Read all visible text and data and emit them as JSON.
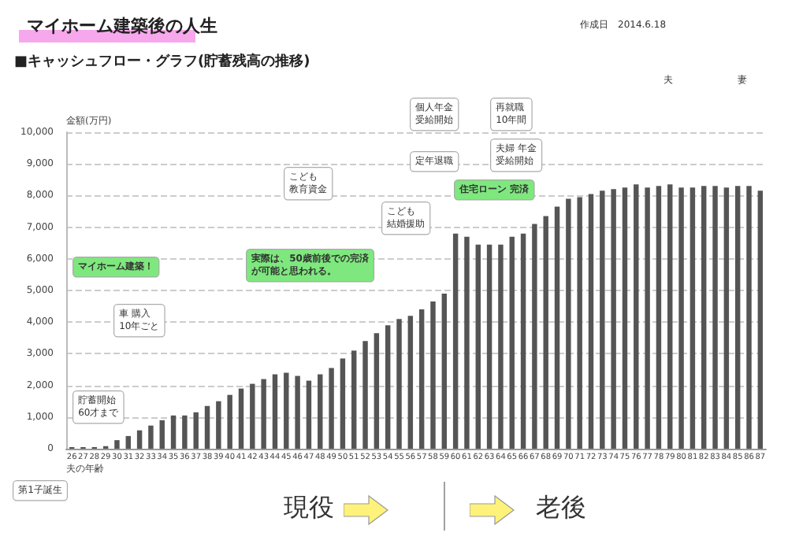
{
  "chart_data": {
    "type": "bar",
    "title": "マイホーム建築後の人生",
    "subtitle": "■キャッシュフロー・グラフ(貯蓄残高の推移)",
    "xlabel": "夫の年齢",
    "ylabel": "金額(万円)",
    "categories": [
      "26",
      "27",
      "28",
      "29",
      "30",
      "31",
      "32",
      "33",
      "34",
      "35",
      "36",
      "37",
      "38",
      "39",
      "40",
      "41",
      "42",
      "43",
      "44",
      "45",
      "46",
      "47",
      "48",
      "49",
      "50",
      "51",
      "52",
      "53",
      "54",
      "55",
      "56",
      "57",
      "58",
      "59",
      "60",
      "61",
      "62",
      "63",
      "64",
      "65",
      "66",
      "67",
      "68",
      "69",
      "70",
      "71",
      "72",
      "73",
      "74",
      "75",
      "76",
      "77",
      "78",
      "79",
      "80",
      "81",
      "82",
      "83",
      "84",
      "85",
      "86",
      "87"
    ],
    "values": [
      50,
      50,
      50,
      80,
      270,
      400,
      580,
      730,
      900,
      1050,
      1050,
      1150,
      1350,
      1500,
      1700,
      1900,
      2050,
      2200,
      2350,
      2400,
      2300,
      2150,
      2350,
      2550,
      2850,
      3100,
      3400,
      3650,
      3900,
      4100,
      4200,
      4400,
      4650,
      4900,
      6800,
      6700,
      6450,
      6450,
      6450,
      6700,
      6800,
      7100,
      7350,
      7650,
      7900,
      7950,
      8050,
      8150,
      8200,
      8250,
      8350,
      8250,
      8300,
      8350,
      8250,
      8250,
      8300,
      8300,
      8250,
      8300,
      8300,
      8150
    ],
    "color": "#555555",
    "ylim": [
      0,
      10000
    ],
    "yticks": [
      0,
      {
        "value": 1000,
        "label": "1,000"
      },
      {
        "value": 2000,
        "label": "2,000"
      },
      {
        "value": 3000,
        "label": "3,000"
      },
      {
        "value": 4000,
        "label": "4,000"
      },
      {
        "value": 5000,
        "label": "5,000"
      },
      {
        "value": 6000,
        "label": "6,000"
      },
      {
        "value": 7000,
        "label": "7,000"
      },
      {
        "value": 8000,
        "label": "8,000"
      },
      {
        "value": 9000,
        "label": "9,000"
      },
      {
        "value": 10000,
        "label": "10,000"
      }
    ],
    "grid": "y",
    "annotations": [
      "作成日　2014.6.18",
      "マイホーム建築！",
      "車 購入\n10年ごと",
      "貯蓄開始\n60才まで",
      "第1子誕生",
      "こども教育資金",
      "実際は、50歳前後での完済が可能と思われる。",
      "こども結婚援助",
      "個人年金受給開始",
      "定年退職",
      "再就職\n10年間",
      "夫婦 年金受給開始",
      "住宅ローン 完済",
      "夫",
      "妻",
      "現役",
      "老後"
    ]
  }
}
